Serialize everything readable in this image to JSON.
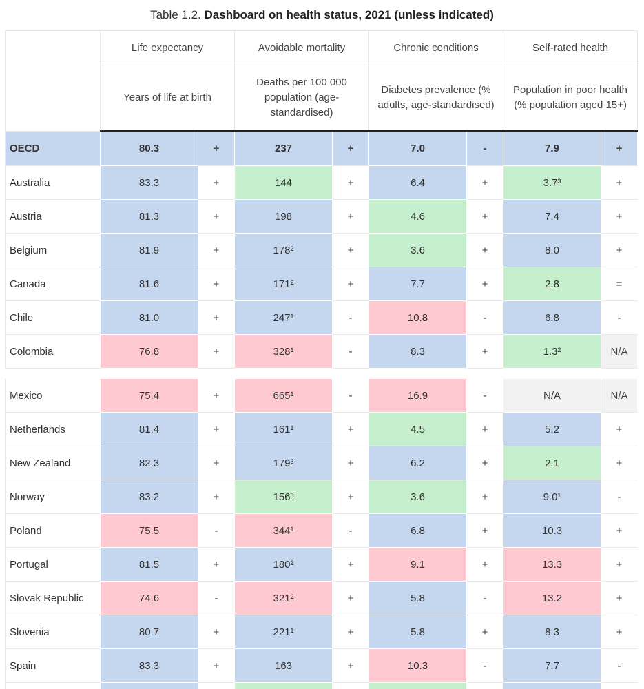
{
  "title": {
    "prefix": "Table 1.2.",
    "bold": "Dashboard on health status, 2021 (unless indicated)"
  },
  "headers": {
    "groups": [
      "Life expectancy",
      "Avoidable mortality",
      "Chronic conditions",
      "Self-rated health"
    ],
    "subs": [
      "Years of life at birth",
      "Deaths per 100 000 population (age-standardised)",
      "Diabetes prevalence (% adults, age-standardised)",
      "Population in poor health (% population aged 15+)"
    ]
  },
  "colors": {
    "blue": "#c5d7ee",
    "green": "#c6efce",
    "red": "#ffc9d2",
    "na": "#f2f2f2"
  },
  "oecd": {
    "label": "OECD",
    "cells": [
      {
        "v": "80.3",
        "s": "+"
      },
      {
        "v": "237",
        "s": "+"
      },
      {
        "v": "7.0",
        "s": "-"
      },
      {
        "v": "7.9",
        "s": "+"
      }
    ]
  },
  "rows_top": [
    {
      "country": "Australia",
      "cells": [
        {
          "v": "83.3",
          "c": "b",
          "s": "+"
        },
        {
          "v": "144",
          "c": "g",
          "s": "+"
        },
        {
          "v": "6.4",
          "c": "b",
          "s": "+"
        },
        {
          "v": "3.7³",
          "c": "g",
          "s": "+"
        }
      ]
    },
    {
      "country": "Austria",
      "cells": [
        {
          "v": "81.3",
          "c": "b",
          "s": "+"
        },
        {
          "v": "198",
          "c": "b",
          "s": "+"
        },
        {
          "v": "4.6",
          "c": "g",
          "s": "+"
        },
        {
          "v": "7.4",
          "c": "b",
          "s": "+"
        }
      ]
    },
    {
      "country": "Belgium",
      "cells": [
        {
          "v": "81.9",
          "c": "b",
          "s": "+"
        },
        {
          "v": "178²",
          "c": "b",
          "s": "+"
        },
        {
          "v": "3.6",
          "c": "g",
          "s": "+"
        },
        {
          "v": "8.0",
          "c": "b",
          "s": "+"
        }
      ]
    },
    {
      "country": "Canada",
      "cells": [
        {
          "v": "81.6",
          "c": "b",
          "s": "+"
        },
        {
          "v": "171²",
          "c": "b",
          "s": "+"
        },
        {
          "v": "7.7",
          "c": "b",
          "s": "+"
        },
        {
          "v": "2.8",
          "c": "g",
          "s": "="
        }
      ]
    },
    {
      "country": "Chile",
      "cells": [
        {
          "v": "81.0",
          "c": "b",
          "s": "+"
        },
        {
          "v": "247¹",
          "c": "b",
          "s": "-"
        },
        {
          "v": "10.8",
          "c": "r",
          "s": "-"
        },
        {
          "v": "6.8",
          "c": "b",
          "s": "-"
        }
      ]
    },
    {
      "country": "Colombia",
      "cells": [
        {
          "v": "76.8",
          "c": "r",
          "s": "+"
        },
        {
          "v": "328¹",
          "c": "r",
          "s": "-"
        },
        {
          "v": "8.3",
          "c": "b",
          "s": "+"
        },
        {
          "v": "1.3²",
          "c": "g",
          "s": "N/A",
          "sg": true
        }
      ]
    }
  ],
  "rows_bottom": [
    {
      "country": "Mexico",
      "cells": [
        {
          "v": "75.4",
          "c": "r",
          "s": "+"
        },
        {
          "v": "665¹",
          "c": "r",
          "s": "-"
        },
        {
          "v": "16.9",
          "c": "r",
          "s": "-"
        },
        {
          "v": "N/A",
          "c": "n",
          "s": "N/A",
          "sg": true
        }
      ]
    },
    {
      "country": "Netherlands",
      "cells": [
        {
          "v": "81.4",
          "c": "b",
          "s": "+"
        },
        {
          "v": "161¹",
          "c": "b",
          "s": "+"
        },
        {
          "v": "4.5",
          "c": "g",
          "s": "+"
        },
        {
          "v": "5.2",
          "c": "b",
          "s": "+"
        }
      ]
    },
    {
      "country": "New Zealand",
      "cells": [
        {
          "v": "82.3",
          "c": "b",
          "s": "+"
        },
        {
          "v": "179³",
          "c": "b",
          "s": "+"
        },
        {
          "v": "6.2",
          "c": "b",
          "s": "+"
        },
        {
          "v": "2.1",
          "c": "g",
          "s": "+"
        }
      ]
    },
    {
      "country": "Norway",
      "cells": [
        {
          "v": "83.2",
          "c": "b",
          "s": "+"
        },
        {
          "v": "156³",
          "c": "g",
          "s": "+"
        },
        {
          "v": "3.6",
          "c": "g",
          "s": "+"
        },
        {
          "v": "9.0¹",
          "c": "b",
          "s": "-"
        }
      ]
    },
    {
      "country": "Poland",
      "cells": [
        {
          "v": "75.5",
          "c": "r",
          "s": "-"
        },
        {
          "v": "344¹",
          "c": "r",
          "s": "-"
        },
        {
          "v": "6.8",
          "c": "b",
          "s": "+"
        },
        {
          "v": "10.3",
          "c": "b",
          "s": "+"
        }
      ]
    },
    {
      "country": "Portugal",
      "cells": [
        {
          "v": "81.5",
          "c": "b",
          "s": "+"
        },
        {
          "v": "180²",
          "c": "b",
          "s": "+"
        },
        {
          "v": "9.1",
          "c": "r",
          "s": "+"
        },
        {
          "v": "13.3",
          "c": "r",
          "s": "+"
        }
      ]
    },
    {
      "country": "Slovak Republic",
      "cells": [
        {
          "v": "74.6",
          "c": "r",
          "s": "-"
        },
        {
          "v": "321²",
          "c": "r",
          "s": "+"
        },
        {
          "v": "5.8",
          "c": "b",
          "s": "-"
        },
        {
          "v": "13.2",
          "c": "r",
          "s": "+"
        }
      ]
    },
    {
      "country": "Slovenia",
      "cells": [
        {
          "v": "80.7",
          "c": "b",
          "s": "+"
        },
        {
          "v": "221¹",
          "c": "b",
          "s": "+"
        },
        {
          "v": "5.8",
          "c": "b",
          "s": "+"
        },
        {
          "v": "8.3",
          "c": "b",
          "s": "+"
        }
      ]
    },
    {
      "country": "Spain",
      "cells": [
        {
          "v": "83.3",
          "c": "b",
          "s": "+"
        },
        {
          "v": "163",
          "c": "b",
          "s": "+"
        },
        {
          "v": "10.3",
          "c": "r",
          "s": "-"
        },
        {
          "v": "7.7",
          "c": "b",
          "s": "-"
        }
      ]
    },
    {
      "country": "",
      "cells": [
        {
          "v": "",
          "c": "b",
          "s": ""
        },
        {
          "v": "",
          "c": "g",
          "s": ""
        },
        {
          "v": "",
          "c": "g",
          "s": ""
        },
        {
          "v": "",
          "c": "b",
          "s": ""
        }
      ]
    }
  ]
}
